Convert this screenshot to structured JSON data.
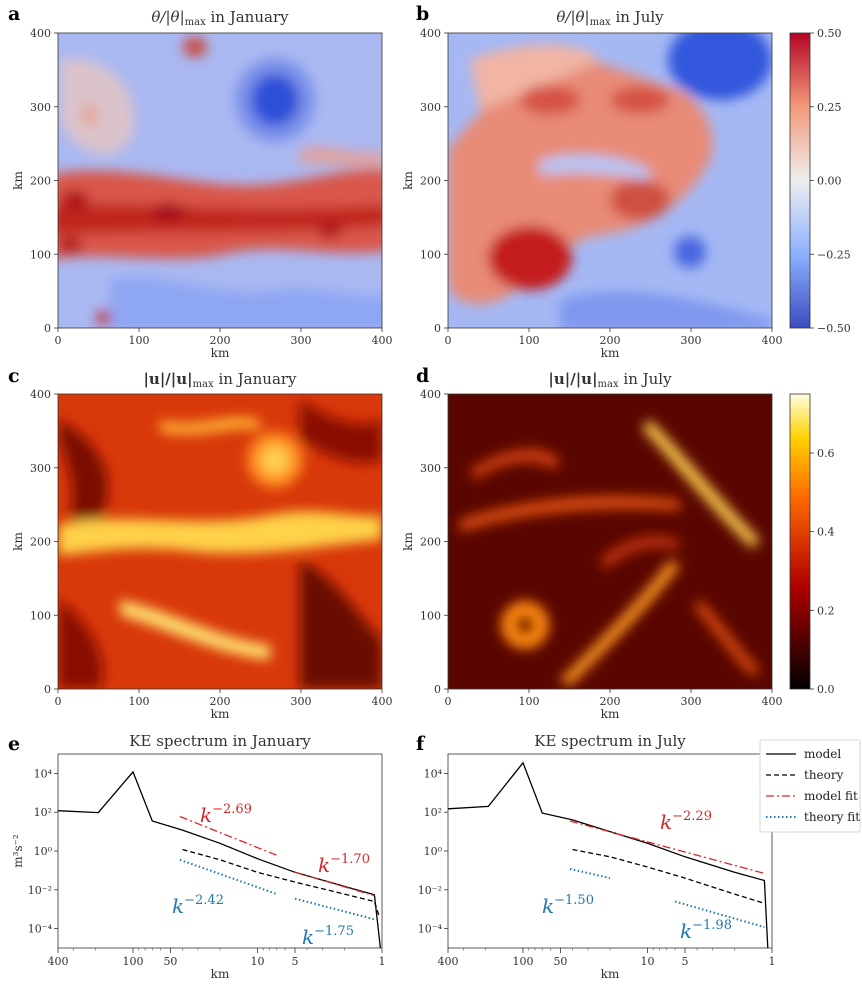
{
  "figure": {
    "panels": [
      {
        "id": "a",
        "label": "a",
        "title": "θ/|θ|max in January",
        "title_main": "θ/|θ|",
        "title_sub": "max",
        "title_rest": " in January"
      },
      {
        "id": "b",
        "label": "b",
        "title": "θ/|θ|max in July",
        "title_main": "θ/|θ|",
        "title_sub": "max",
        "title_rest": " in July"
      },
      {
        "id": "c",
        "label": "c",
        "title": "|u|/|u|max in January",
        "title_main": "|u|/|u|",
        "title_sub": "max",
        "title_rest": " in January"
      },
      {
        "id": "d",
        "label": "d",
        "title": "|u|/|u|max in July",
        "title_main": "|u|/|u|",
        "title_sub": "max",
        "title_rest": " in July"
      },
      {
        "id": "e",
        "label": "e",
        "title": "KE spectrum in January"
      },
      {
        "id": "f",
        "label": "f",
        "title": "KE spectrum in July"
      }
    ]
  },
  "chart_data": [
    {
      "type": "heatmap",
      "id": "a",
      "title": "θ/|θ|max in January",
      "xlabel": "km",
      "ylabel": "km",
      "xlim": [
        0,
        400
      ],
      "ylim": [
        0,
        400
      ],
      "xticks": [
        0,
        100,
        200,
        300,
        400
      ],
      "yticks": [
        0,
        100,
        200,
        300,
        400
      ],
      "colormap": "coolwarm",
      "clim": [
        -0.5,
        0.5
      ]
    },
    {
      "type": "heatmap",
      "id": "b",
      "title": "θ/|θ|max in July",
      "xlabel": "km",
      "ylabel": "km",
      "xlim": [
        0,
        400
      ],
      "ylim": [
        0,
        400
      ],
      "xticks": [
        0,
        100,
        200,
        300,
        400
      ],
      "yticks": [
        0,
        100,
        200,
        300,
        400
      ],
      "colormap": "coolwarm",
      "clim": [
        -0.5,
        0.5
      ],
      "colorbar_ticks": [
        "0.50",
        "0.25",
        "0.00",
        "−0.25",
        "−0.50"
      ]
    },
    {
      "type": "heatmap",
      "id": "c",
      "title": "|u|/|u|max in January",
      "xlabel": "km",
      "ylabel": "km",
      "xlim": [
        0,
        400
      ],
      "ylim": [
        0,
        400
      ],
      "xticks": [
        0,
        100,
        200,
        300,
        400
      ],
      "yticks": [
        0,
        100,
        200,
        300,
        400
      ],
      "colormap": "hot",
      "clim": [
        0,
        0.75
      ]
    },
    {
      "type": "heatmap",
      "id": "d",
      "title": "|u|/|u|max in July",
      "xlabel": "km",
      "ylabel": "km",
      "xlim": [
        0,
        400
      ],
      "ylim": [
        0,
        400
      ],
      "xticks": [
        0,
        100,
        200,
        300,
        400
      ],
      "yticks": [
        0,
        100,
        200,
        300,
        400
      ],
      "colormap": "hot",
      "clim": [
        0,
        0.75
      ],
      "colorbar_ticks": [
        "0.6",
        "0.4",
        "0.2",
        "0.0"
      ]
    },
    {
      "type": "line",
      "id": "e",
      "title": "KE spectrum in January",
      "xlabel": "km",
      "ylabel": "m³s⁻²",
      "x_scale": "log-reversed",
      "y_scale": "log",
      "xticks": [
        "400",
        "100",
        "50",
        "10",
        "5",
        "1"
      ],
      "yticks": [
        "10⁴",
        "10²",
        "10⁰",
        "10⁻²",
        "10⁻⁴"
      ],
      "series": [
        {
          "name": "model",
          "style": "solid",
          "color": "#000000",
          "points": [
            [
              400,
              120
            ],
            [
              190,
              95
            ],
            [
              100,
              12000
            ],
            [
              70,
              35
            ],
            [
              40,
              12
            ],
            [
              20,
              2.5
            ],
            [
              10,
              0.4
            ],
            [
              5,
              0.08
            ],
            [
              2,
              0.015
            ],
            [
              1.15,
              0.0055
            ],
            [
              1.03,
              1e-05
            ]
          ]
        },
        {
          "name": "theory",
          "style": "dashed",
          "color": "#000000",
          "points": [
            [
              40,
              1.2
            ],
            [
              20,
              0.35
            ],
            [
              10,
              0.08
            ],
            [
              5,
              0.025
            ],
            [
              2,
              0.006
            ],
            [
              1.15,
              0.0025
            ],
            [
              1.05,
              0.0004
            ]
          ]
        },
        {
          "name": "model fit",
          "style": "dashdot",
          "color": "#d62728",
          "segments": [
            {
              "points": [
                [
                  42,
                  60
                ],
                [
                  7,
                  0.6
                ]
              ],
              "label": "k^−2.69"
            },
            {
              "points": [
                [
                  5,
                  0.08
                ],
                [
                  1.15,
                  0.005
                ]
              ],
              "label": "k^−1.70"
            }
          ]
        },
        {
          "name": "theory fit",
          "style": "dotted",
          "color": "#1f77b4",
          "segments": [
            {
              "points": [
                [
                  42,
                  0.35
                ],
                [
                  7,
                  0.006
                ]
              ],
              "label": "k^−2.42"
            },
            {
              "points": [
                [
                  5,
                  0.0035
                ],
                [
                  1.15,
                  0.0003
                ]
              ],
              "label": "k^−1.75"
            }
          ]
        }
      ],
      "annotations": [
        {
          "base": "k",
          "exp": "−2.69",
          "color": "#d62728"
        },
        {
          "base": "k",
          "exp": "−1.70",
          "color": "#d62728"
        },
        {
          "base": "k",
          "exp": "−2.42",
          "color": "#1f77b4"
        },
        {
          "base": "k",
          "exp": "−1.75",
          "color": "#1f77b4"
        }
      ]
    },
    {
      "type": "line",
      "id": "f",
      "title": "KE spectrum in July",
      "xlabel": "km",
      "x_scale": "log-reversed",
      "y_scale": "log",
      "xticks": [
        "400",
        "100",
        "50",
        "10",
        "5",
        "1"
      ],
      "yticks": [
        "10⁴",
        "10²",
        "10⁰",
        "10⁻²",
        "10⁻⁴"
      ],
      "series": [
        {
          "name": "model",
          "style": "solid",
          "color": "#000000",
          "points": [
            [
              400,
              150
            ],
            [
              190,
              200
            ],
            [
              100,
              35000
            ],
            [
              70,
              90
            ],
            [
              40,
              40
            ],
            [
              20,
              10
            ],
            [
              10,
              2.5
            ],
            [
              5,
              0.5
            ],
            [
              2,
              0.08
            ],
            [
              1.15,
              0.03
            ],
            [
              1.08,
              1e-05
            ]
          ]
        },
        {
          "name": "theory",
          "style": "dashed",
          "color": "#000000",
          "points": [
            [
              40,
              1.2
            ],
            [
              20,
              0.5
            ],
            [
              10,
              0.15
            ],
            [
              5,
              0.04
            ],
            [
              2,
              0.006
            ],
            [
              1.15,
              0.002
            ]
          ]
        },
        {
          "name": "model fit",
          "style": "dashdot",
          "color": "#d62728",
          "segments": [
            {
              "points": [
                [
                  42,
                  35
                ],
                [
                  1.15,
                  0.07
                ]
              ],
              "label": "k^−2.29"
            }
          ]
        },
        {
          "name": "theory fit",
          "style": "dotted",
          "color": "#1f77b4",
          "segments": [
            {
              "points": [
                [
                  42,
                  0.12
                ],
                [
                  20,
                  0.04
                ]
              ],
              "label": "k^−1.50"
            },
            {
              "points": [
                [
                  6,
                  0.0025
                ],
                [
                  1.15,
                  0.00012
                ]
              ],
              "label": "k^−1.98"
            }
          ]
        }
      ],
      "annotations": [
        {
          "base": "k",
          "exp": "−2.29",
          "color": "#d62728"
        },
        {
          "base": "k",
          "exp": "−1.50",
          "color": "#1f77b4"
        },
        {
          "base": "k",
          "exp": "−1.98",
          "color": "#1f77b4"
        }
      ],
      "legend": {
        "placement": "right",
        "entries": [
          {
            "label": "model",
            "style": "solid",
            "color": "#000000"
          },
          {
            "label": "theory",
            "style": "dashed",
            "color": "#000000"
          },
          {
            "label": "model fit",
            "style": "dashdot",
            "color": "#d62728"
          },
          {
            "label": "theory fit",
            "style": "dotted",
            "color": "#1f77b4"
          }
        ]
      }
    }
  ]
}
